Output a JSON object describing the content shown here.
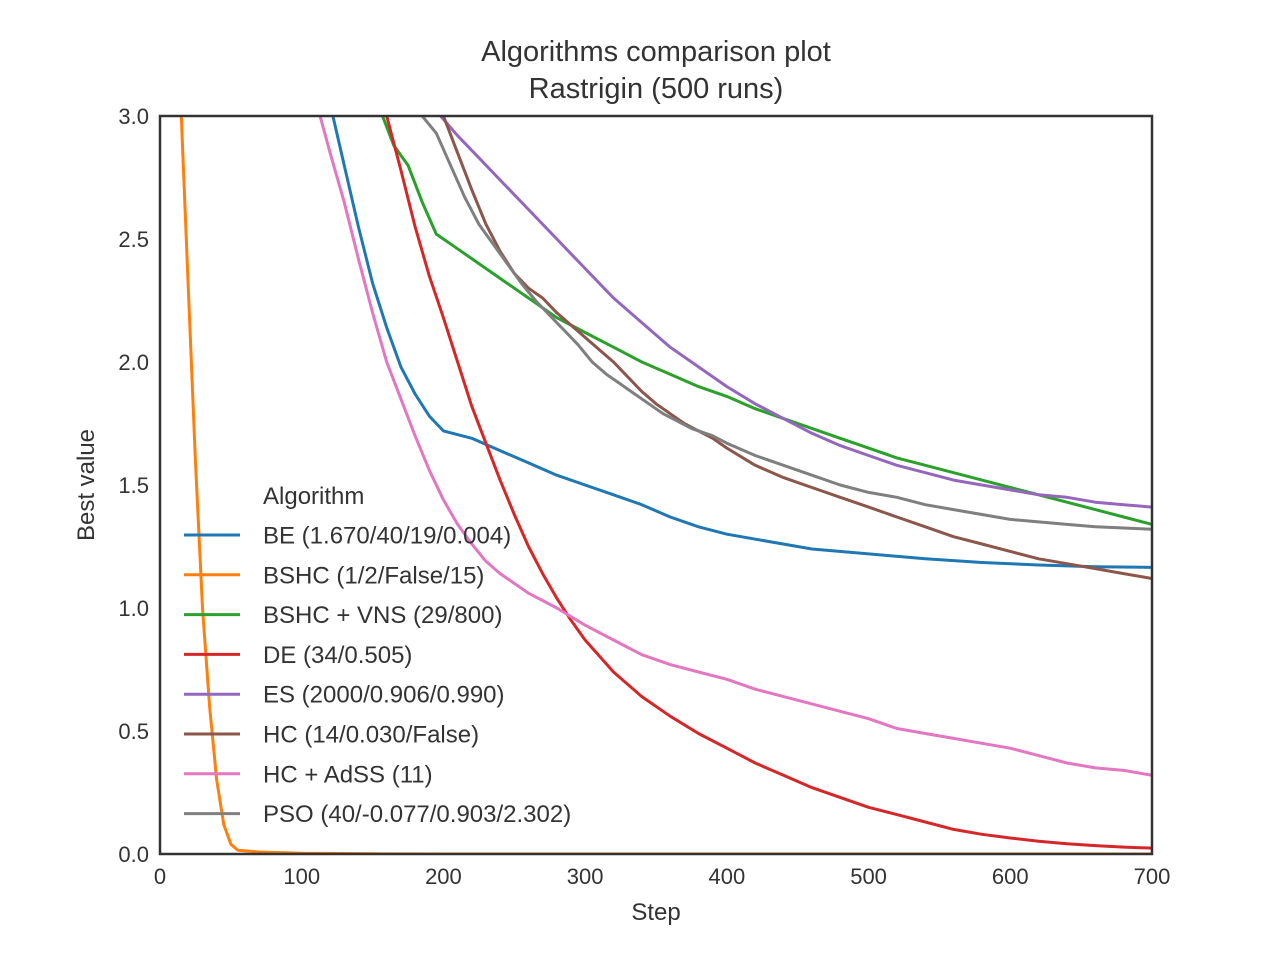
{
  "chart_data": {
    "type": "line",
    "title": "Algorithms comparison plot",
    "subtitle": "Rastrigin (500 runs)",
    "xlabel": "Step",
    "ylabel": "Best value",
    "xlim": [
      0,
      700
    ],
    "ylim": [
      0.0,
      3.0
    ],
    "x_ticks": [
      "0",
      "100",
      "200",
      "300",
      "400",
      "500",
      "600",
      "700"
    ],
    "y_ticks": [
      "0.0",
      "0.5",
      "1.0",
      "1.5",
      "2.0",
      "2.5",
      "3.0"
    ],
    "grid": false,
    "legend": {
      "title": "Algorithm",
      "position": "lower-left"
    },
    "series": [
      {
        "name": "BE (1.670/40/19/0.004)",
        "color": "#1f77b4",
        "points": [
          [
            122,
            3.0
          ],
          [
            130,
            2.8
          ],
          [
            140,
            2.55
          ],
          [
            150,
            2.32
          ],
          [
            160,
            2.14
          ],
          [
            170,
            1.98
          ],
          [
            180,
            1.87
          ],
          [
            190,
            1.78
          ],
          [
            200,
            1.72
          ],
          [
            220,
            1.69
          ],
          [
            240,
            1.64
          ],
          [
            260,
            1.59
          ],
          [
            280,
            1.54
          ],
          [
            300,
            1.5
          ],
          [
            320,
            1.46
          ],
          [
            340,
            1.42
          ],
          [
            360,
            1.37
          ],
          [
            380,
            1.33
          ],
          [
            400,
            1.3
          ],
          [
            430,
            1.27
          ],
          [
            460,
            1.24
          ],
          [
            500,
            1.22
          ],
          [
            540,
            1.2
          ],
          [
            580,
            1.185
          ],
          [
            620,
            1.175
          ],
          [
            660,
            1.168
          ],
          [
            700,
            1.165
          ]
        ]
      },
      {
        "name": "BSHC (1/2/False/15)",
        "color": "#ff7f0e",
        "points": [
          [
            15,
            3.0
          ],
          [
            20,
            2.3
          ],
          [
            25,
            1.6
          ],
          [
            30,
            1.0
          ],
          [
            35,
            0.6
          ],
          [
            40,
            0.3
          ],
          [
            45,
            0.12
          ],
          [
            50,
            0.04
          ],
          [
            55,
            0.015
          ],
          [
            70,
            0.008
          ],
          [
            100,
            0.003
          ],
          [
            150,
            0.001
          ],
          [
            200,
            0.0
          ],
          [
            700,
            0.0
          ]
        ]
      },
      {
        "name": "BSHC + VNS (29/800)",
        "color": "#2ca02c",
        "points": [
          [
            157,
            3.0
          ],
          [
            165,
            2.88
          ],
          [
            175,
            2.8
          ],
          [
            185,
            2.65
          ],
          [
            195,
            2.52
          ],
          [
            210,
            2.46
          ],
          [
            225,
            2.4
          ],
          [
            240,
            2.34
          ],
          [
            260,
            2.26
          ],
          [
            280,
            2.18
          ],
          [
            300,
            2.12
          ],
          [
            320,
            2.06
          ],
          [
            340,
            2.0
          ],
          [
            360,
            1.95
          ],
          [
            380,
            1.9
          ],
          [
            400,
            1.86
          ],
          [
            420,
            1.81
          ],
          [
            440,
            1.77
          ],
          [
            460,
            1.73
          ],
          [
            480,
            1.69
          ],
          [
            500,
            1.65
          ],
          [
            520,
            1.61
          ],
          [
            540,
            1.58
          ],
          [
            560,
            1.55
          ],
          [
            580,
            1.52
          ],
          [
            600,
            1.49
          ],
          [
            620,
            1.46
          ],
          [
            640,
            1.43
          ],
          [
            660,
            1.4
          ],
          [
            680,
            1.37
          ],
          [
            700,
            1.34
          ]
        ]
      },
      {
        "name": "DE (34/0.505)",
        "color": "#d62728",
        "points": [
          [
            160,
            3.0
          ],
          [
            170,
            2.78
          ],
          [
            180,
            2.55
          ],
          [
            190,
            2.35
          ],
          [
            200,
            2.18
          ],
          [
            210,
            2.0
          ],
          [
            220,
            1.82
          ],
          [
            230,
            1.67
          ],
          [
            240,
            1.52
          ],
          [
            250,
            1.38
          ],
          [
            260,
            1.25
          ],
          [
            270,
            1.14
          ],
          [
            280,
            1.04
          ],
          [
            290,
            0.95
          ],
          [
            300,
            0.87
          ],
          [
            320,
            0.74
          ],
          [
            340,
            0.64
          ],
          [
            360,
            0.56
          ],
          [
            380,
            0.49
          ],
          [
            400,
            0.43
          ],
          [
            420,
            0.37
          ],
          [
            440,
            0.32
          ],
          [
            460,
            0.27
          ],
          [
            480,
            0.23
          ],
          [
            500,
            0.19
          ],
          [
            520,
            0.16
          ],
          [
            540,
            0.13
          ],
          [
            560,
            0.1
          ],
          [
            580,
            0.08
          ],
          [
            600,
            0.065
          ],
          [
            620,
            0.052
          ],
          [
            640,
            0.042
          ],
          [
            660,
            0.034
          ],
          [
            680,
            0.028
          ],
          [
            700,
            0.024
          ]
        ]
      },
      {
        "name": "ES (2000/0.906/0.990)",
        "color": "#9467bd",
        "points": [
          [
            198,
            3.0
          ],
          [
            210,
            2.92
          ],
          [
            225,
            2.83
          ],
          [
            240,
            2.74
          ],
          [
            260,
            2.62
          ],
          [
            280,
            2.5
          ],
          [
            300,
            2.38
          ],
          [
            320,
            2.26
          ],
          [
            340,
            2.16
          ],
          [
            360,
            2.06
          ],
          [
            380,
            1.98
          ],
          [
            400,
            1.9
          ],
          [
            420,
            1.83
          ],
          [
            440,
            1.77
          ],
          [
            460,
            1.71
          ],
          [
            480,
            1.66
          ],
          [
            500,
            1.62
          ],
          [
            520,
            1.58
          ],
          [
            540,
            1.55
          ],
          [
            560,
            1.52
          ],
          [
            580,
            1.5
          ],
          [
            600,
            1.48
          ],
          [
            620,
            1.46
          ],
          [
            640,
            1.45
          ],
          [
            660,
            1.43
          ],
          [
            680,
            1.42
          ],
          [
            700,
            1.41
          ]
        ]
      },
      {
        "name": "HC (14/0.030/False)",
        "color": "#8c564b",
        "points": [
          [
            200,
            3.0
          ],
          [
            210,
            2.85
          ],
          [
            220,
            2.7
          ],
          [
            230,
            2.56
          ],
          [
            240,
            2.45
          ],
          [
            250,
            2.36
          ],
          [
            260,
            2.3
          ],
          [
            270,
            2.26
          ],
          [
            280,
            2.2
          ],
          [
            290,
            2.15
          ],
          [
            300,
            2.1
          ],
          [
            310,
            2.05
          ],
          [
            320,
            2.0
          ],
          [
            330,
            1.94
          ],
          [
            340,
            1.88
          ],
          [
            350,
            1.83
          ],
          [
            360,
            1.79
          ],
          [
            370,
            1.75
          ],
          [
            380,
            1.72
          ],
          [
            390,
            1.69
          ],
          [
            400,
            1.65
          ],
          [
            420,
            1.58
          ],
          [
            440,
            1.53
          ],
          [
            460,
            1.49
          ],
          [
            480,
            1.45
          ],
          [
            500,
            1.41
          ],
          [
            520,
            1.37
          ],
          [
            540,
            1.33
          ],
          [
            560,
            1.29
          ],
          [
            580,
            1.26
          ],
          [
            600,
            1.23
          ],
          [
            620,
            1.2
          ],
          [
            640,
            1.18
          ],
          [
            660,
            1.16
          ],
          [
            680,
            1.14
          ],
          [
            700,
            1.12
          ]
        ]
      },
      {
        "name": "HC + AdSS (11)",
        "color": "#e377c2",
        "points": [
          [
            113,
            3.0
          ],
          [
            120,
            2.85
          ],
          [
            130,
            2.65
          ],
          [
            140,
            2.42
          ],
          [
            150,
            2.2
          ],
          [
            160,
            2.0
          ],
          [
            170,
            1.85
          ],
          [
            180,
            1.7
          ],
          [
            190,
            1.56
          ],
          [
            200,
            1.44
          ],
          [
            210,
            1.34
          ],
          [
            220,
            1.26
          ],
          [
            230,
            1.19
          ],
          [
            240,
            1.14
          ],
          [
            250,
            1.1
          ],
          [
            260,
            1.06
          ],
          [
            280,
            1.0
          ],
          [
            300,
            0.93
          ],
          [
            320,
            0.87
          ],
          [
            340,
            0.81
          ],
          [
            360,
            0.77
          ],
          [
            380,
            0.74
          ],
          [
            400,
            0.71
          ],
          [
            420,
            0.67
          ],
          [
            440,
            0.64
          ],
          [
            460,
            0.61
          ],
          [
            480,
            0.58
          ],
          [
            500,
            0.55
          ],
          [
            520,
            0.51
          ],
          [
            540,
            0.49
          ],
          [
            560,
            0.47
          ],
          [
            580,
            0.45
          ],
          [
            600,
            0.43
          ],
          [
            620,
            0.4
          ],
          [
            640,
            0.37
          ],
          [
            660,
            0.35
          ],
          [
            680,
            0.34
          ],
          [
            700,
            0.32
          ]
        ]
      },
      {
        "name": "PSO (40/-0.077/0.903/2.302)",
        "color": "#7f7f7f",
        "points": [
          [
            185,
            3.0
          ],
          [
            195,
            2.93
          ],
          [
            205,
            2.8
          ],
          [
            215,
            2.67
          ],
          [
            225,
            2.56
          ],
          [
            235,
            2.48
          ],
          [
            245,
            2.4
          ],
          [
            255,
            2.32
          ],
          [
            265,
            2.25
          ],
          [
            275,
            2.19
          ],
          [
            285,
            2.13
          ],
          [
            295,
            2.07
          ],
          [
            305,
            2.0
          ],
          [
            315,
            1.95
          ],
          [
            325,
            1.91
          ],
          [
            335,
            1.87
          ],
          [
            345,
            1.83
          ],
          [
            355,
            1.79
          ],
          [
            365,
            1.76
          ],
          [
            375,
            1.73
          ],
          [
            390,
            1.7
          ],
          [
            400,
            1.67
          ],
          [
            420,
            1.62
          ],
          [
            440,
            1.58
          ],
          [
            460,
            1.54
          ],
          [
            480,
            1.5
          ],
          [
            500,
            1.47
          ],
          [
            520,
            1.45
          ],
          [
            540,
            1.42
          ],
          [
            560,
            1.4
          ],
          [
            580,
            1.38
          ],
          [
            600,
            1.36
          ],
          [
            620,
            1.35
          ],
          [
            640,
            1.34
          ],
          [
            660,
            1.33
          ],
          [
            680,
            1.325
          ],
          [
            700,
            1.32
          ]
        ]
      }
    ]
  }
}
